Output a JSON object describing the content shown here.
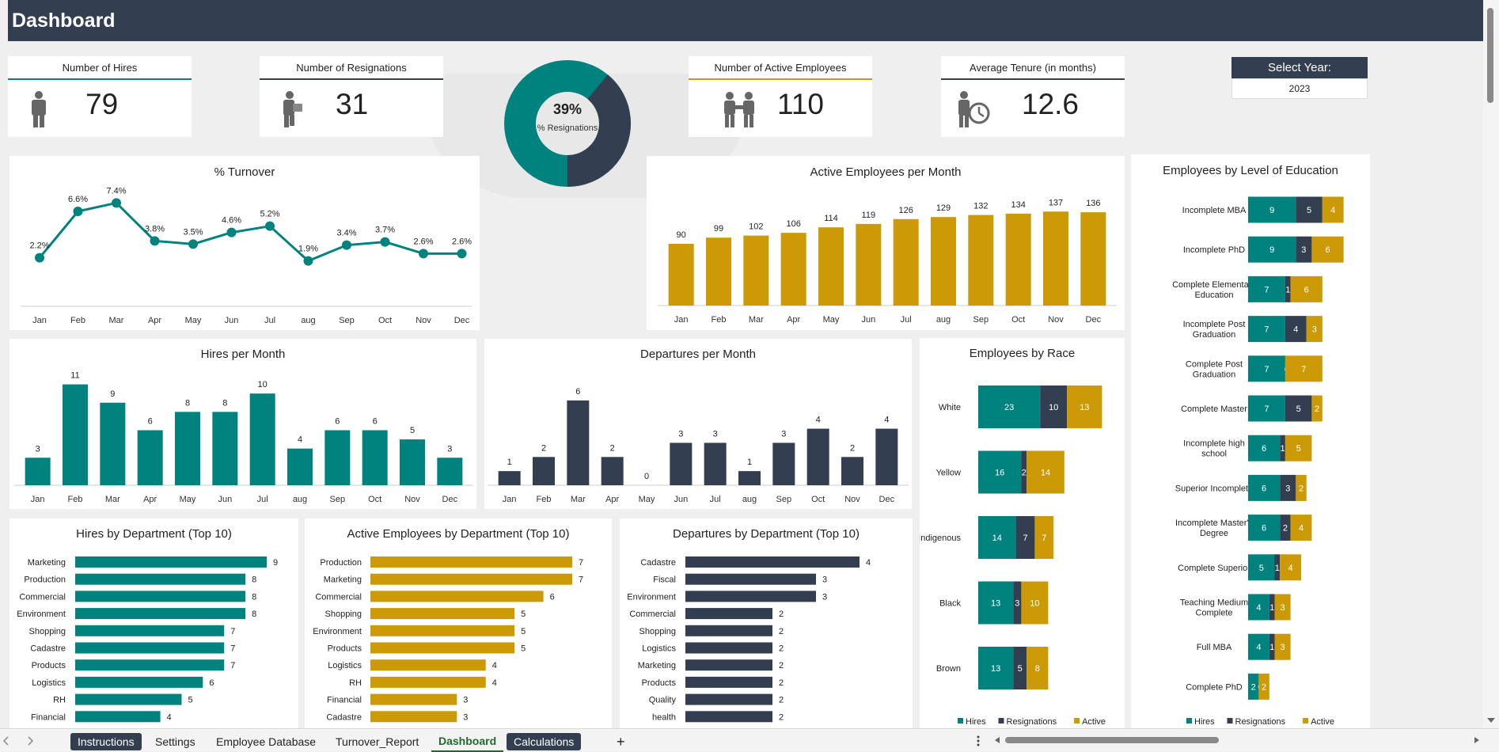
{
  "header": {
    "title": "Dashboard"
  },
  "kpis": {
    "hires": {
      "label": "Number of Hires",
      "value": "79"
    },
    "resignations": {
      "label": "Number of Resignations",
      "value": "31"
    },
    "active": {
      "label": "Number of Active Employees",
      "value": "110"
    },
    "tenure": {
      "label": "Average Tenure (in months)",
      "value": "12.6"
    }
  },
  "donut": {
    "percent_label": "39%",
    "sub_label": "% Resignations",
    "fraction": 0.39
  },
  "year_select": {
    "label": "Select Year:",
    "value": "2023"
  },
  "colors": {
    "teal": "#00827f",
    "navy": "#333f50",
    "gold": "#cc9a06",
    "header": "#333f50"
  },
  "chart_data": [
    {
      "id": "turnover",
      "type": "line",
      "title": "% Turnover",
      "categories": [
        "Jan",
        "Feb",
        "Mar",
        "Apr",
        "May",
        "Jun",
        "Jul",
        "aug",
        "Sep",
        "Oct",
        "Nov",
        "Dec"
      ],
      "values": [
        2.2,
        6.6,
        7.4,
        3.8,
        3.5,
        4.6,
        5.2,
        1.9,
        3.4,
        3.7,
        2.6,
        2.6
      ],
      "labels": [
        "2.2%",
        "6.6%",
        "7.4%",
        "3.8%",
        "3.5%",
        "4.6%",
        "5.2%",
        "1.9%",
        "3.4%",
        "3.7%",
        "2.6%",
        "2.6%"
      ],
      "ylim": [
        0,
        9
      ]
    },
    {
      "id": "active_month",
      "type": "bar",
      "title": "Active Employees per Month",
      "categories": [
        "Jan",
        "Feb",
        "Mar",
        "Apr",
        "May",
        "Jun",
        "Jul",
        "aug",
        "Sep",
        "Oct",
        "Nov",
        "Dec"
      ],
      "values": [
        90,
        99,
        102,
        106,
        114,
        119,
        126,
        129,
        132,
        134,
        137,
        136
      ],
      "ylim": [
        0,
        150
      ]
    },
    {
      "id": "hires_month",
      "type": "bar",
      "title": "Hires per Month",
      "categories": [
        "Jan",
        "Feb",
        "Mar",
        "Apr",
        "May",
        "Jun",
        "Jul",
        "aug",
        "Sep",
        "Oct",
        "Nov",
        "Dec"
      ],
      "values": [
        3,
        11,
        9,
        6,
        8,
        8,
        10,
        4,
        6,
        6,
        5,
        3
      ],
      "ylim": [
        0,
        12
      ]
    },
    {
      "id": "departures_month",
      "type": "bar",
      "title": "Departures per Month",
      "categories": [
        "Jan",
        "Feb",
        "Mar",
        "Apr",
        "May",
        "Jun",
        "Jul",
        "aug",
        "Sep",
        "Oct",
        "Nov",
        "Dec"
      ],
      "values": [
        1,
        2,
        6,
        2,
        0,
        3,
        3,
        1,
        3,
        4,
        2,
        4
      ],
      "ylim": [
        0,
        7
      ]
    },
    {
      "id": "hires_dept",
      "type": "bar",
      "orientation": "horizontal",
      "title": "Hires by Department (Top 10)",
      "categories": [
        "Marketing",
        "Production",
        "Commercial",
        "Environment",
        "Shopping",
        "Cadastre",
        "Products",
        "Logistics",
        "RH",
        "Financial"
      ],
      "values": [
        9,
        8,
        8,
        8,
        7,
        7,
        7,
        6,
        5,
        4
      ],
      "xlim": [
        0,
        9
      ]
    },
    {
      "id": "active_dept",
      "type": "bar",
      "orientation": "horizontal",
      "title": "Active Employees by Department (Top 10)",
      "categories": [
        "Production",
        "Marketing",
        "Commercial",
        "Shopping",
        "Environment",
        "Products",
        "Logistics",
        "RH",
        "Financial",
        "Cadastre"
      ],
      "values": [
        7,
        7,
        6,
        5,
        5,
        5,
        4,
        4,
        3,
        3
      ],
      "xlim": [
        0,
        7
      ]
    },
    {
      "id": "departures_dept",
      "type": "bar",
      "orientation": "horizontal",
      "title": "Departures by Department (Top 10)",
      "categories": [
        "Cadastre",
        "Fiscal",
        "Environment",
        "Commercial",
        "Shopping",
        "Logistics",
        "Marketing",
        "Products",
        "Quality",
        "health"
      ],
      "values": [
        4,
        3,
        3,
        2,
        2,
        2,
        2,
        2,
        2,
        2
      ],
      "xlim": [
        0,
        4
      ]
    },
    {
      "id": "race",
      "type": "bar",
      "orientation": "horizontal",
      "stacked": true,
      "title": "Employees by Race",
      "categories": [
        "White",
        "Yellow",
        "Indigenous",
        "Black",
        "Brown"
      ],
      "series": [
        {
          "name": "Hires",
          "values": [
            23,
            16,
            14,
            13,
            13
          ]
        },
        {
          "name": "Resignations",
          "values": [
            10,
            2,
            7,
            3,
            5
          ]
        },
        {
          "name": "Active",
          "values": [
            13,
            14,
            7,
            10,
            8
          ]
        }
      ]
    },
    {
      "id": "education",
      "type": "bar",
      "orientation": "horizontal",
      "stacked": true,
      "title": "Employees by Level of Education",
      "categories": [
        "Incomplete MBA",
        "Incomplete PhD",
        "Complete Elementary Education",
        "Incomplete Post Graduation",
        "Complete Post Graduation",
        "Complete Master",
        "Incomplete high school",
        "Superior Incomplete",
        "Incomplete Master's Degree",
        "Complete Superior",
        "Teaching Medium Complete",
        "Full MBA",
        "Complete PhD"
      ],
      "series": [
        {
          "name": "Hires",
          "values": [
            9,
            9,
            7,
            7,
            7,
            7,
            6,
            6,
            6,
            5,
            4,
            4,
            2
          ]
        },
        {
          "name": "Resignations",
          "values": [
            5,
            3,
            1,
            4,
            0,
            5,
            1,
            3,
            2,
            1,
            1,
            1,
            0
          ]
        },
        {
          "name": "Active",
          "values": [
            4,
            6,
            6,
            3,
            7,
            2,
            5,
            2,
            4,
            4,
            3,
            3,
            2
          ]
        }
      ]
    }
  ],
  "tabs": {
    "instructions": "Instructions",
    "settings": "Settings",
    "employee_db": "Employee Database",
    "turnover_report": "Turnover_Report",
    "dashboard": "Dashboard",
    "calculations": "Calculations",
    "add": "+"
  }
}
